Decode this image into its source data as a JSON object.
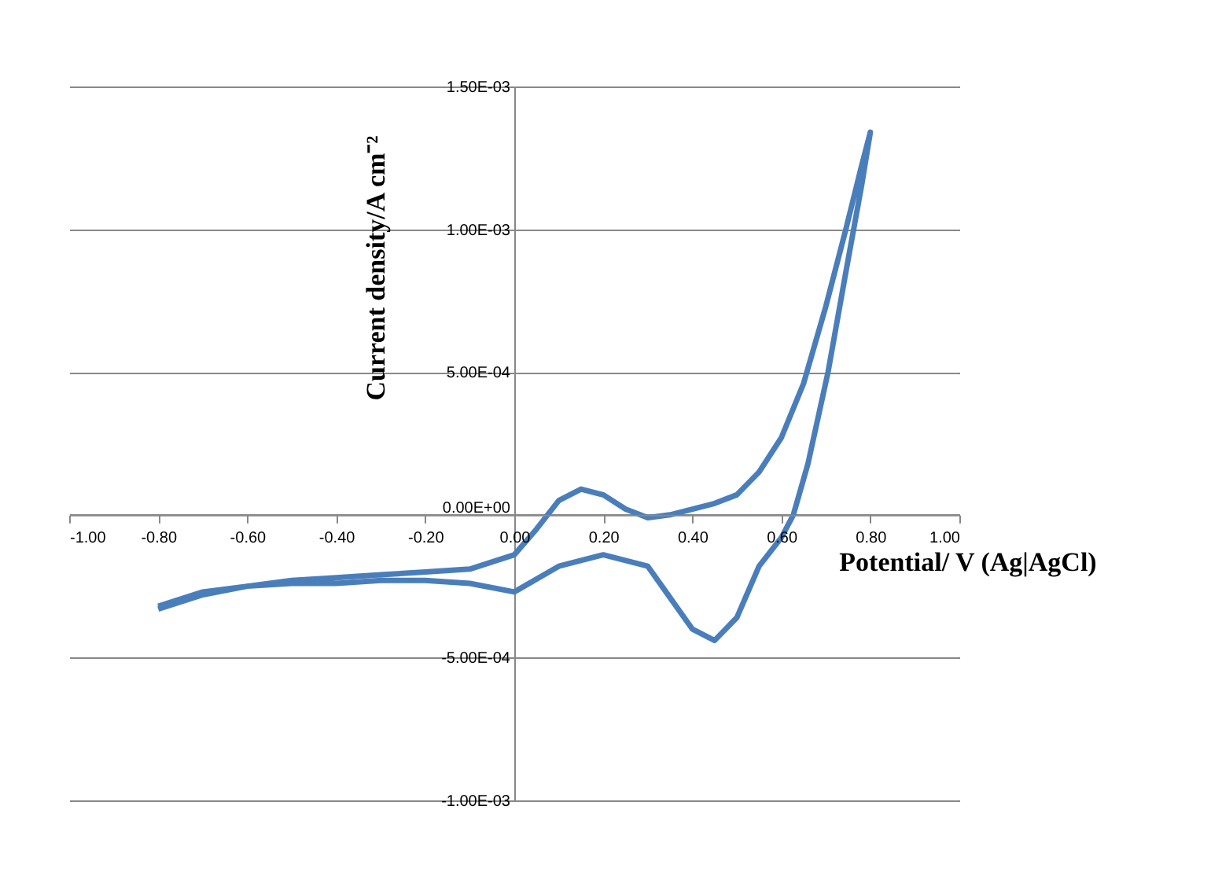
{
  "chart_data": {
    "type": "line",
    "xlabel": "Potential/ V (Ag|AgCl)",
    "ylabel": "Current density/A cm⁻²",
    "xlim": [
      -1.0,
      1.0
    ],
    "xticks": [
      {
        "value": -1.0,
        "label": "-1.00"
      },
      {
        "value": -0.8,
        "label": "-0.80"
      },
      {
        "value": -0.6,
        "label": "-0.60"
      },
      {
        "value": -0.4,
        "label": "-0.40"
      },
      {
        "value": -0.2,
        "label": "-0.20"
      },
      {
        "value": 0,
        "label": "0.00"
      },
      {
        "value": 0.2,
        "label": "0.20"
      },
      {
        "value": 0.4,
        "label": "0.40"
      },
      {
        "value": 0.6,
        "label": "0.60"
      },
      {
        "value": 0.8,
        "label": "0.80"
      },
      {
        "value": 1.0,
        "label": "1.00"
      }
    ],
    "ylim": [
      -0.001,
      0.0015
    ],
    "yticks": [
      {
        "value": -0.001,
        "label": "-1.00E-03"
      },
      {
        "value": -0.0005,
        "label": "-5.00E-04"
      },
      {
        "value": 0,
        "label": "0.00E+00"
      },
      {
        "value": 0.0005,
        "label": "5.00E-04"
      },
      {
        "value": 0.001,
        "label": "1.00E-03"
      },
      {
        "value": 0.0015,
        "label": "1.50E-03"
      }
    ],
    "grid": "y",
    "marker": "none",
    "line_style": "solid",
    "series": [
      {
        "color": "#4a7ebb",
        "x": [
          -0.8,
          -0.7,
          -0.6,
          -0.5,
          -0.4,
          -0.3,
          -0.2,
          -0.1,
          0.0,
          0.05,
          0.1,
          0.15,
          0.2,
          0.25,
          0.3,
          0.35,
          0.4,
          0.45,
          0.5,
          0.55,
          0.6,
          0.65,
          0.7,
          0.745,
          0.78,
          0.8,
          0.78,
          0.745,
          0.705,
          0.66,
          0.627,
          0.6,
          0.55,
          0.5,
          0.45,
          0.4,
          0.35,
          0.3,
          0.2,
          0.1,
          0.0,
          -0.1,
          -0.2,
          -0.3,
          -0.4,
          -0.5,
          -0.6,
          -0.7,
          -0.8
        ],
        "values": [
          -0.00033,
          -0.00028,
          -0.00025,
          -0.00023,
          -0.00022,
          -0.00021,
          -0.0002,
          -0.00019,
          -0.00014,
          -5e-05,
          5e-05,
          9e-05,
          7e-05,
          2e-05,
          -1e-05,
          0.0,
          2e-05,
          4e-05,
          7e-05,
          0.00015,
          0.00027,
          0.00046,
          0.00073,
          0.001,
          0.00122,
          0.00134,
          0.00115,
          0.00085,
          0.0005,
          0.00018,
          0.0,
          -8e-05,
          -0.00018,
          -0.00036,
          -0.00044,
          -0.0004,
          -0.00029,
          -0.00018,
          -0.00014,
          -0.00018,
          -0.00027,
          -0.00024,
          -0.00023,
          -0.00023,
          -0.00024,
          -0.00024,
          -0.00025,
          -0.00027,
          -0.00032
        ]
      }
    ]
  }
}
